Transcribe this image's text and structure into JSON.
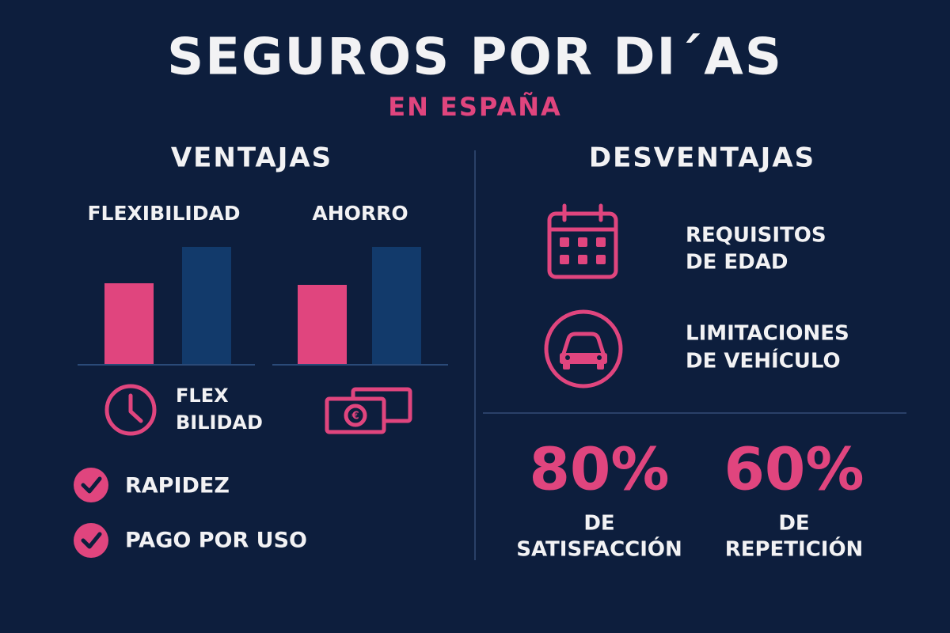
{
  "header": {
    "title": "SEGUROS POR DI´AS",
    "subtitle": "EN ESPAÑA"
  },
  "ventajas": {
    "heading": "VENTAJAS",
    "charts": [
      {
        "label": "FLEXIBILIDAD",
        "values": [
          102,
          148
        ]
      },
      {
        "label": "AHORRO",
        "values": [
          100,
          148
        ]
      }
    ],
    "bar_colors": [
      "#e0457e",
      "#123a6b"
    ],
    "icon_label": [
      "FLEX",
      "BILIDAD"
    ],
    "checklist": [
      "RAPIDEZ",
      "PAGO POR USO"
    ]
  },
  "desventajas": {
    "heading": "DESVENTAJAS",
    "items": [
      [
        "REQUISITOS",
        "DE EDAD"
      ],
      [
        "LIMITACIONES",
        "DE VEHÍCULO"
      ]
    ]
  },
  "stats": [
    {
      "value": "80%",
      "label": [
        "DE",
        "SATISFACCIÓN"
      ]
    },
    {
      "value": "60%",
      "label": [
        "DE",
        "REPETICIÓN"
      ]
    }
  ]
}
